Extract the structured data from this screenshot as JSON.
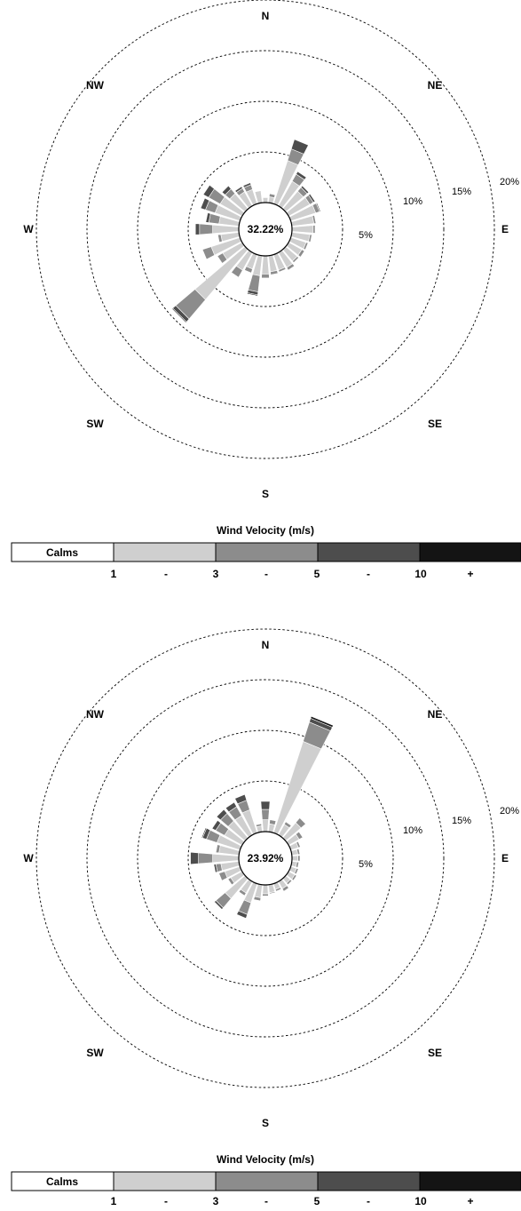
{
  "chart_data": [
    {
      "type": "wind-rose",
      "calms": "32.22%",
      "directions": [
        {
          "label": "N"
        },
        {
          "label": "NE"
        },
        {
          "label": "E"
        },
        {
          "label": "SE"
        },
        {
          "label": "S"
        },
        {
          "label": "SW"
        },
        {
          "label": "W"
        },
        {
          "label": "NW"
        }
      ],
      "ring_labels": [
        "5%",
        "10%",
        "15%",
        "20%"
      ],
      "ring_values": [
        5,
        10,
        15,
        20
      ],
      "bins": [
        "1-3",
        "3-5",
        "5-10",
        "10+"
      ],
      "petals": [
        {
          "bearing": 0,
          "segs": [
            0.5,
            0,
            0,
            0
          ]
        },
        {
          "bearing": 11.25,
          "segs": [
            0.6,
            0.3,
            0,
            0
          ]
        },
        {
          "bearing": 22.5,
          "segs": [
            4.5,
            1.2,
            1.0,
            0
          ]
        },
        {
          "bearing": 33.75,
          "segs": [
            2.8,
            0.8,
            0.3,
            0
          ]
        },
        {
          "bearing": 45,
          "segs": [
            2.3,
            0.5,
            0.2,
            0
          ]
        },
        {
          "bearing": 56.25,
          "segs": [
            2.4,
            0.4,
            0.2,
            0
          ]
        },
        {
          "bearing": 67.5,
          "segs": [
            2.6,
            0.4,
            0.1,
            0
          ]
        },
        {
          "bearing": 78.75,
          "segs": [
            2.2,
            0.2,
            0,
            0
          ]
        },
        {
          "bearing": 90,
          "segs": [
            2.1,
            0.2,
            0,
            0
          ]
        },
        {
          "bearing": 101.25,
          "segs": [
            1.8,
            0.2,
            0,
            0
          ]
        },
        {
          "bearing": 112.5,
          "segs": [
            1.6,
            0.2,
            0,
            0
          ]
        },
        {
          "bearing": 123.75,
          "segs": [
            1.5,
            0.3,
            0,
            0
          ]
        },
        {
          "bearing": 135,
          "segs": [
            1.5,
            0.2,
            0,
            0
          ]
        },
        {
          "bearing": 146.25,
          "segs": [
            1.7,
            0.3,
            0,
            0
          ]
        },
        {
          "bearing": 157.5,
          "segs": [
            1.6,
            0.2,
            0,
            0
          ]
        },
        {
          "bearing": 168.75,
          "segs": [
            1.6,
            0.3,
            0,
            0
          ]
        },
        {
          "bearing": 180,
          "segs": [
            1.8,
            0.4,
            0,
            0
          ]
        },
        {
          "bearing": 191.25,
          "segs": [
            2.0,
            1.6,
            0.3,
            0.1
          ]
        },
        {
          "bearing": 202.5,
          "segs": [
            1.5,
            0.4,
            0,
            0
          ]
        },
        {
          "bearing": 213.75,
          "segs": [
            2.0,
            0.8,
            0,
            0
          ]
        },
        {
          "bearing": 225,
          "segs": [
            6.5,
            2.5,
            0.4,
            0.1
          ]
        },
        {
          "bearing": 236.25,
          "segs": [
            2.2,
            0.6,
            0,
            0
          ]
        },
        {
          "bearing": 247.5,
          "segs": [
            3.0,
            0.9,
            0,
            0
          ]
        },
        {
          "bearing": 258.75,
          "segs": [
            1.8,
            0.3,
            0,
            0
          ]
        },
        {
          "bearing": 270,
          "segs": [
            2.6,
            1.3,
            0.4,
            0
          ]
        },
        {
          "bearing": 281.25,
          "segs": [
            2.0,
            1.0,
            0.3,
            0
          ]
        },
        {
          "bearing": 292.5,
          "segs": [
            2.6,
            1.0,
            0.5,
            0
          ]
        },
        {
          "bearing": 303.75,
          "segs": [
            2.5,
            1.3,
            0.6,
            0
          ]
        },
        {
          "bearing": 315,
          "segs": [
            2.0,
            0.6,
            0.4,
            0
          ]
        },
        {
          "bearing": 326.25,
          "segs": [
            1.6,
            0.4,
            0.2,
            0
          ]
        },
        {
          "bearing": 337.5,
          "segs": [
            1.5,
            0.5,
            0.2,
            0
          ]
        },
        {
          "bearing": 348.75,
          "segs": [
            1.2,
            0,
            0,
            0
          ]
        }
      ]
    },
    {
      "type": "wind-rose",
      "calms": "23.92%",
      "directions": [
        {
          "label": "N"
        },
        {
          "label": "NE"
        },
        {
          "label": "E"
        },
        {
          "label": "SE"
        },
        {
          "label": "S"
        },
        {
          "label": "SW"
        },
        {
          "label": "W"
        },
        {
          "label": "NW"
        }
      ],
      "ring_labels": [
        "5%",
        "10%",
        "15%",
        "20%"
      ],
      "ring_values": [
        5,
        10,
        15,
        20
      ],
      "bins": [
        "1-3",
        "3-5",
        "5-10",
        "10+"
      ],
      "petals": [
        {
          "bearing": 0,
          "segs": [
            1.2,
            1.0,
            0.8,
            0
          ]
        },
        {
          "bearing": 11.25,
          "segs": [
            0.8,
            0.4,
            0,
            0
          ]
        },
        {
          "bearing": 22.5,
          "segs": [
            9.5,
            2.0,
            0.4,
            0.2
          ]
        },
        {
          "bearing": 33.75,
          "segs": [
            1.2,
            0.3,
            0,
            0
          ]
        },
        {
          "bearing": 45,
          "segs": [
            2.0,
            0.6,
            0,
            0
          ]
        },
        {
          "bearing": 56.25,
          "segs": [
            1.2,
            0.4,
            0,
            0
          ]
        },
        {
          "bearing": 67.5,
          "segs": [
            0.8,
            0.2,
            0,
            0
          ]
        },
        {
          "bearing": 78.75,
          "segs": [
            0.6,
            0.2,
            0,
            0
          ]
        },
        {
          "bearing": 90,
          "segs": [
            0.6,
            0.2,
            0,
            0
          ]
        },
        {
          "bearing": 101.25,
          "segs": [
            0.5,
            0.2,
            0,
            0
          ]
        },
        {
          "bearing": 112.5,
          "segs": [
            0.6,
            0.2,
            0,
            0
          ]
        },
        {
          "bearing": 123.75,
          "segs": [
            0.7,
            0.2,
            0,
            0
          ]
        },
        {
          "bearing": 135,
          "segs": [
            0.6,
            0.2,
            0,
            0
          ]
        },
        {
          "bearing": 146.25,
          "segs": [
            0.8,
            0.3,
            0,
            0
          ]
        },
        {
          "bearing": 157.5,
          "segs": [
            0.6,
            0.2,
            0,
            0
          ]
        },
        {
          "bearing": 168.75,
          "segs": [
            0.8,
            0.1,
            0,
            0
          ]
        },
        {
          "bearing": 180,
          "segs": [
            0.9,
            0.2,
            0,
            0
          ]
        },
        {
          "bearing": 191.25,
          "segs": [
            1.3,
            0.3,
            0,
            0
          ]
        },
        {
          "bearing": 202.5,
          "segs": [
            2.0,
            1.2,
            0.4,
            0
          ]
        },
        {
          "bearing": 213.75,
          "segs": [
            1.3,
            0.3,
            0,
            0
          ]
        },
        {
          "bearing": 225,
          "segs": [
            2.6,
            1.2,
            0.2,
            0
          ]
        },
        {
          "bearing": 236.25,
          "segs": [
            1.3,
            0.3,
            0,
            0
          ]
        },
        {
          "bearing": 247.5,
          "segs": [
            1.6,
            0.6,
            0,
            0
          ]
        },
        {
          "bearing": 258.75,
          "segs": [
            1.8,
            0.5,
            0.2,
            0
          ]
        },
        {
          "bearing": 270,
          "segs": [
            2.6,
            1.4,
            0.8,
            0
          ]
        },
        {
          "bearing": 281.25,
          "segs": [
            2.0,
            0.3,
            0,
            0
          ]
        },
        {
          "bearing": 292.5,
          "segs": [
            2.4,
            1.1,
            0.4,
            0.1
          ]
        },
        {
          "bearing": 303.75,
          "segs": [
            2.0,
            1.0,
            0.4,
            0
          ]
        },
        {
          "bearing": 315,
          "segs": [
            2.2,
            1.0,
            0.5,
            0
          ]
        },
        {
          "bearing": 326.25,
          "segs": [
            2.2,
            1.0,
            0.5,
            0
          ]
        },
        {
          "bearing": 337.5,
          "segs": [
            2.4,
            1.0,
            0.6,
            0
          ]
        },
        {
          "bearing": 348.75,
          "segs": [
            0.6,
            0.2,
            0,
            0
          ]
        }
      ]
    }
  ],
  "legend": {
    "title": "Wind Velocity (m/s)",
    "calms_label": "Calms",
    "colors": [
      "#ffffff",
      "#cfcfcf",
      "#8c8c8c",
      "#4d4d4d",
      "#141414"
    ],
    "tick_labels": [
      "1",
      "-",
      "3",
      "-",
      "5",
      "-",
      "10",
      "+"
    ]
  }
}
